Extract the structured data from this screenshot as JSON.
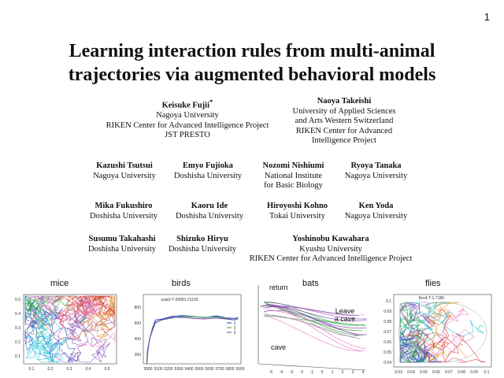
{
  "page_number": "1",
  "title_line1": "Learning interaction rules from multi-animal",
  "title_line2": "trajectories via augmented behavioral models",
  "authors": [
    {
      "name": "Keisuke Fujii",
      "mark": "*",
      "aff": [
        "Nagoya University",
        "RIKEN Center for Advanced Intelligence Project",
        "JST PRESTO"
      ]
    },
    {
      "name": "Naoya Takeishi",
      "mark": "",
      "aff": [
        "University of Applied Sciences",
        "and Arts Western Switzerland",
        "RIKEN Center for Advanced",
        "Intelligence Project"
      ]
    },
    {
      "name": "Kazushi Tsutsui",
      "mark": "",
      "aff": [
        "Nagoya University"
      ]
    },
    {
      "name": "Emyo Fujioka",
      "mark": "",
      "aff": [
        "Doshisha University"
      ]
    },
    {
      "name": "Nozomi Nishiumi",
      "mark": "",
      "aff": [
        "National Institute",
        "for Basic Biology"
      ]
    },
    {
      "name": "Ryoya Tanaka",
      "mark": "",
      "aff": [
        "Nagoya University"
      ]
    },
    {
      "name": "Mika Fukushiro",
      "mark": "",
      "aff": [
        "Doshisha University"
      ]
    },
    {
      "name": "Kaoru Ide",
      "mark": "",
      "aff": [
        "Doshisha University"
      ]
    },
    {
      "name": "Hiroyoshi Kohno",
      "mark": "",
      "aff": [
        "Tokai University"
      ]
    },
    {
      "name": "Ken Yoda",
      "mark": "",
      "aff": [
        "Nagoya University"
      ]
    },
    {
      "name": "Susumu Takahashi",
      "mark": "",
      "aff": [
        "Doshisha University"
      ]
    },
    {
      "name": "Shizuko Hiryu",
      "mark": "",
      "aff": [
        "Doshisha University"
      ]
    },
    {
      "name": "Yoshinobu Kawahara",
      "mark": "",
      "aff": [
        "Kyushu University",
        "RIKEN Center for Advanced Intelligence Project"
      ]
    }
  ],
  "figure": {
    "mice": {
      "label": "mice",
      "x_ticks": [
        "0.1",
        "0.2",
        "0.3",
        "0.4",
        "0.5"
      ],
      "y_ticks": [
        "0.5",
        "0.4",
        "0.3",
        "0.2",
        "0.1"
      ]
    },
    "birds": {
      "label": "birds",
      "subtitle": "sula3-T-20891-21193",
      "x_ticks": [
        "5000",
        "5100",
        "5200",
        "5300",
        "5400",
        "5500",
        "5600",
        "5700",
        "5800",
        "5900"
      ],
      "y_ticks": [
        "800",
        "600",
        "400",
        "200"
      ],
      "legend": [
        "1",
        "2",
        "3"
      ]
    },
    "bats": {
      "label": "bats",
      "return_label": "return",
      "leave_label_1": "Leave",
      "leave_label_2": "a cave",
      "cave_label": "cave",
      "x_ticks": [
        "-5",
        "-4",
        "-3",
        "-2",
        "-1",
        "0",
        "1",
        "2",
        "3",
        "4"
      ]
    },
    "flies": {
      "label": "flies",
      "subtitle": "fles4-T-1-7186",
      "x_ticks": [
        "0.03",
        "0.04",
        "0.05",
        "0.06",
        "0.07",
        "0.08",
        "0.09",
        "0.1"
      ],
      "y_ticks": [
        "0.1",
        "0.09",
        "0.08",
        "0.07",
        "0.06",
        "0.05",
        "0.04"
      ]
    }
  },
  "colors": {
    "line1": "#1f3fd1",
    "line2": "#2ea043",
    "line3": "#7a3fb0",
    "line4": "#e08a1e",
    "line5": "#d62728",
    "line6": "#17becf",
    "line7": "#e377c2"
  }
}
